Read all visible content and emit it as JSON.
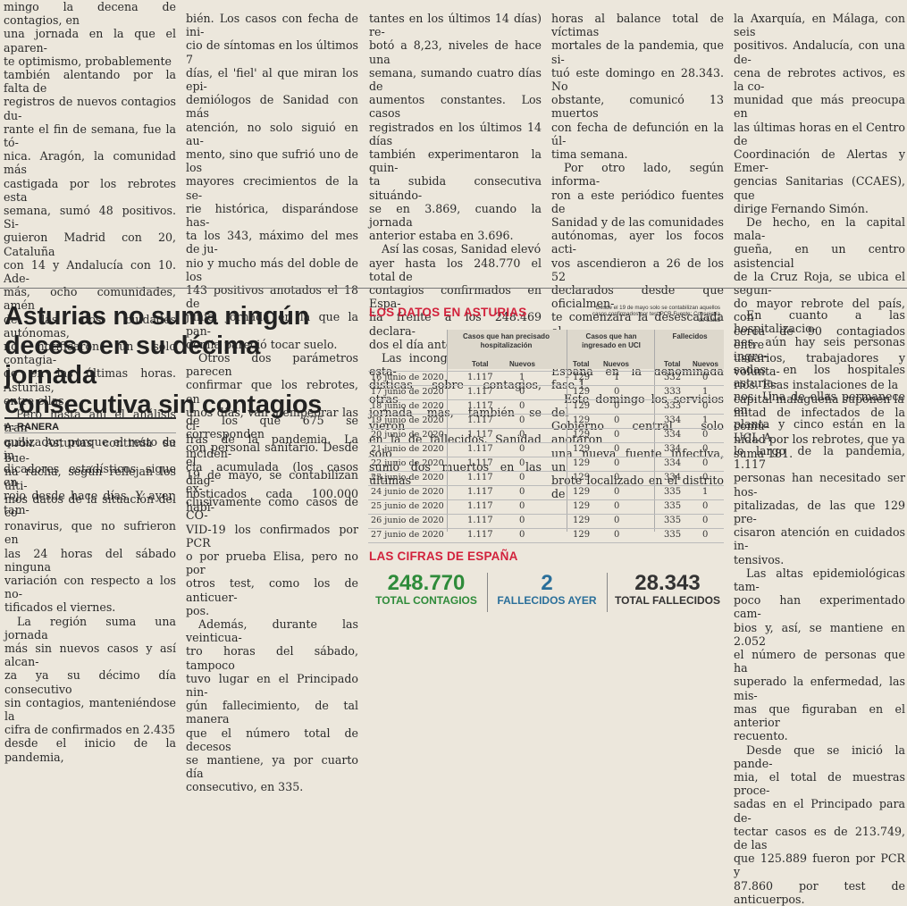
{
  "top_columns": [
    [
      {
        "text": "mingo la decena de contagios, en\nuna jornada en la que el aparen-\nte optimismo, probablemente\ntambién alentando por la falta de\nregistros de nuevos contagios du-\nrante el fin de semana, fue la tó-\nnica. Aragón, la comunidad más\ncastigada por los rebrotes esta\nsemana, sumó 48 positivos. Si-\nguieron Madrid con 20, Cataluña\ncon 14 y Andalucía con 10. Ade-\nmás, ocho comunidades, amén\nde las dos ciudades autónomas,\nno notificaron un solo contagia-\ndo en las últimas horas. Asturias,\nentre ellas.",
        "indent": false
      },
      {
        "text": "Pero hasta ahí el análisis tran-\nquilizador, porque el resto de in-\ndicadores estadísticos sigue en\nrojo desde hace días. Y ayer, tam-",
        "indent": true
      }
    ],
    [
      {
        "text": "bién. Los casos con fecha de ini-\ncio de síntomas en los últimos 7\ndías, el 'fiel' al que miran los epi-\ndemiólogos de Sanidad con más\natención, no solo siguió en au-\nmento, sino que sufrió uno de los\nmayores crecimientos de la se-\nrie histórica, disparándose has-\nta los 343, máximo del mes de ju-\nnio y mucho más del doble de los\n143 positivos anotados el 18 de\njunio, jornada en la que la pan-\ndemia pareció tocar suelo.",
        "indent": false
      },
      {
        "text": "Otros dos parámetros parecen\nconfirmar que los rebrotes, en\nunos días, van a empeorar las ci-\nfras de la pandemia. La inciden-\ncia acumulada (los casos diag-\nnosticados cada 100.000 habi-",
        "indent": true
      }
    ],
    [
      {
        "text": "tantes en los últimos 14 días) re-\nbotó a 8,23, niveles de hace una\nsemana, sumando cuatro días de\naumentos constantes. Los casos\nregistrados en los últimos 14 días\ntambién experimentaron la quin-\nta subida consecutiva situándo-\nse en 3.869, cuando la jornada\nanterior estaba en 3.696.",
        "indent": false
      },
      {
        "text": "Así las cosas, Sanidad elevó\nayer hasta los 248.770 el total de\ncontagios confirmados en Espa-\nña frente a los 248.469 declara-\ndos el día anterior.",
        "indent": true
      },
      {
        "text": "Las incongruencias en las esta-\ndísticas sobre contagios, otras\njornada más, también se vieron\nen la de fallecidos. Sanidad solo\nsumó dos muertos en las últimas",
        "indent": true
      }
    ],
    [
      {
        "text": "horas al balance total de víctimas\nmortales de la pandemia, que si-\ntuó este domingo en 28.343. No\nobstante, comunicó 13 muertos\ncon fecha de defunción en la úl-\ntima semana.",
        "indent": false
      },
      {
        "text": "Por otro lado, según informa-\nron a este periódico fuentes de\nSanidad y de las comunidades\nautónomas, ayer los focos acti-\nvos ascendieron a 26 de los 52\ndeclarados desde que oficialmen-\nte comenzara la desescalada el\n11 de mayo con la entrada de toda\nEspaña en la denominada fase 1.",
        "indent": true
      },
      {
        "text": "Este domingo los servicios del\nGobierno central solo anotaron\nuna nueva fuente infectiva, un\nbrote localizado en el distrito de",
        "indent": true
      }
    ],
    [
      {
        "text": "la Axarquía, en Málaga, con seis\npositivos. Andalucía, con una de-\ncena de rebrotes activos, es la co-\nmunidad que más preocupa en\nlas últimas horas en el Centro de\nCoordinación de Alertas y Emer-\ngencias Sanitarias (CCAES), que\ndirige Fernando Simón.",
        "indent": false
      },
      {
        "text": "De hecho, en la capital mala-\ngueña, en un centro asistencial\nde la Cruz Roja, se ubica el segun-\ndo mayor rebrote del país, con\ncerca de 90 contagiados entre\nusuarios, trabajadores y volunta-\nrios. Esas instalaciones de la\ncapital malagueña suponen la\nmitad de infectados de la comu-\nnidad por los rebrotes, que ya\nsuma 181.",
        "indent": true
      }
    ]
  ],
  "headline": "Asturias no suma ningún\ndeceso en su décima jornada\nconsecutiva sin contagios",
  "byline": "A. RANERA",
  "dateline": "GIJÓN.",
  "lower_col1": [
    {
      "text": " Asturias continúa su bue-\nna racha, según reflejan los últi-\nmos datos de la situación del co-\nronavirus, que no sufrieron en\nlas 24 horas del sábado ninguna\nvariación con respecto a los no-\ntificados el viernes.",
      "indent": false
    },
    {
      "text": "La región suma una jornada\nmás sin nuevos casos y así alcan-\nza ya su décimo día consecutivo\nsin contagios, manteniéndose la\ncifra de confirmados en 2.435\ndesde el inicio de la pandemia,",
      "indent": true
    }
  ],
  "lower_col2": [
    {
      "text": "de los que 675 se corresponden\ncon personal sanitario. Desde el\n19 de mayo, se contabilizan ex-\nclusivamente como casos de CO-\nVID-19 los confirmados por PCR\no por prueba Elisa, pero no por\notros test, como los de anticuer-\npos.",
      "indent": false
    },
    {
      "text": "Además, durante las veinticua-\ntro horas del sábado, tampoco\ntuvo lugar en el Principado nin-\ngún fallecimiento, de tal manera\nque el número total de decesos\nse mantiene, ya por cuarto día\nconsecutivo, en 335.",
      "indent": true
    }
  ],
  "right_col": [
    {
      "text": "En cuanto a las hospitalizacio-\nnes, aún hay seis personas ingre-\nsadas en los hospitales asturia-\nnos. Una de ellas permanece en\nplanta y cinco están en la UCI. A\nlo largo de la pandemia, 1.117\npersonas han necesitado ser hos-\npitalizadas, de las que 129 pre-\ncisaron atención en cuidados in-\ntensivos.",
      "indent": true
    },
    {
      "text": "Las altas epidemiológicas tam-\npoco han experimentado cam-\nbios y, así, se mantiene en 2.052\nel número de personas que ha\nsuperado la enfermedad, las mis-\nmas que figuraban en el anterior\nrecuento.",
      "indent": true
    },
    {
      "text": "Desde que se inició la pande-\nmia, el total de muestras proce-\nsadas en el Principado para de-\ntectar casos es de 213.749, de las\nque 125.889 fueron por PCR y\n87.860 por test de anticuerpos.",
      "indent": true
    }
  ],
  "datos_box": {
    "title": "LOS DATOS EN ASTURIAS",
    "note": "Desde el 19 de mayo solo se contabilizan aquellos casos confirmados por test PCR Fuente: Consejería de Salud",
    "groups": {
      "hosp": "Casos que han precisado hospitalización",
      "uci": "Casos que han ingresado en UCI",
      "fall": "Fallecidos"
    },
    "subheaders": {
      "total": "Total",
      "nuevos": "Nuevos"
    },
    "accent": "#d2223c",
    "rows": [
      [
        "16 junio de 2020",
        "1.117",
        "1",
        "129",
        "1",
        "332",
        "0"
      ],
      [
        "17 junio de 2020",
        "1.117",
        "0",
        "129",
        "0",
        "333",
        "1"
      ],
      [
        "18 junio de 2020",
        "1.117",
        "0",
        "129",
        "0",
        "333",
        "0"
      ],
      [
        "19 junio de 2020",
        "1.117",
        "0",
        "129",
        "0",
        "334",
        "1"
      ],
      [
        "20 junio de 2020",
        "1.117",
        "0",
        "129",
        "0",
        "334",
        "0"
      ],
      [
        "21 junio de 2020",
        "1.117",
        "0",
        "129",
        "0",
        "334",
        "0"
      ],
      [
        "22 junio de 2020",
        "1.117",
        "0",
        "129",
        "0",
        "334",
        "0"
      ],
      [
        "23 junio de 2020",
        "1.117",
        "0",
        "129",
        "0",
        "334",
        "0"
      ],
      [
        "24 junio de 2020",
        "1.117",
        "0",
        "129",
        "0",
        "335",
        "1"
      ],
      [
        "25 junio de 2020",
        "1.117",
        "0",
        "129",
        "0",
        "335",
        "0"
      ],
      [
        "26 junio de 2020",
        "1.117",
        "0",
        "129",
        "0",
        "335",
        "0"
      ],
      [
        "27 junio de 2020",
        "1.117",
        "0",
        "129",
        "0",
        "335",
        "0"
      ]
    ]
  },
  "spain_box": {
    "title": "LAS CIFRAS DE ESPAÑA",
    "stats": [
      {
        "value": "248.770",
        "label": "TOTAL CONTAGIOS",
        "color": "#2e8b3a"
      },
      {
        "value": "2",
        "label": "FALLECIDOS AYER",
        "color": "#2a6f9a"
      },
      {
        "value": "28.343",
        "label": "TOTAL FALLECIDOS",
        "color": "#333333"
      }
    ]
  }
}
